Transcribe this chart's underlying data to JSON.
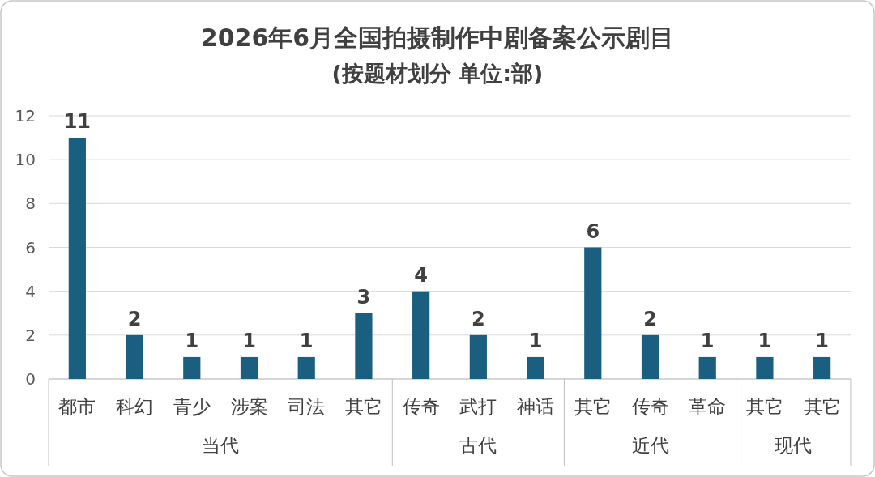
{
  "chart_data": {
    "type": "bar",
    "title": "2026年6月全国拍摄制作中剧备案公示剧目",
    "subtitle": "(按题材划分 单位:部)",
    "categories": [
      "都市",
      "科幻",
      "青少",
      "涉案",
      "司法",
      "其它",
      "传奇",
      "武打",
      "神话",
      "其它",
      "传奇",
      "革命",
      "其它",
      "其它"
    ],
    "values": [
      11,
      2,
      1,
      1,
      1,
      3,
      4,
      2,
      1,
      6,
      2,
      1,
      1,
      1
    ],
    "color": "#1b5f80",
    "ylim": [
      0,
      12
    ],
    "yticks": [
      0,
      2,
      4,
      6,
      8,
      10,
      12
    ],
    "grid": "y",
    "data_labels": true,
    "annotations": [
      "当代",
      "古代",
      "近代",
      "现代"
    ]
  }
}
